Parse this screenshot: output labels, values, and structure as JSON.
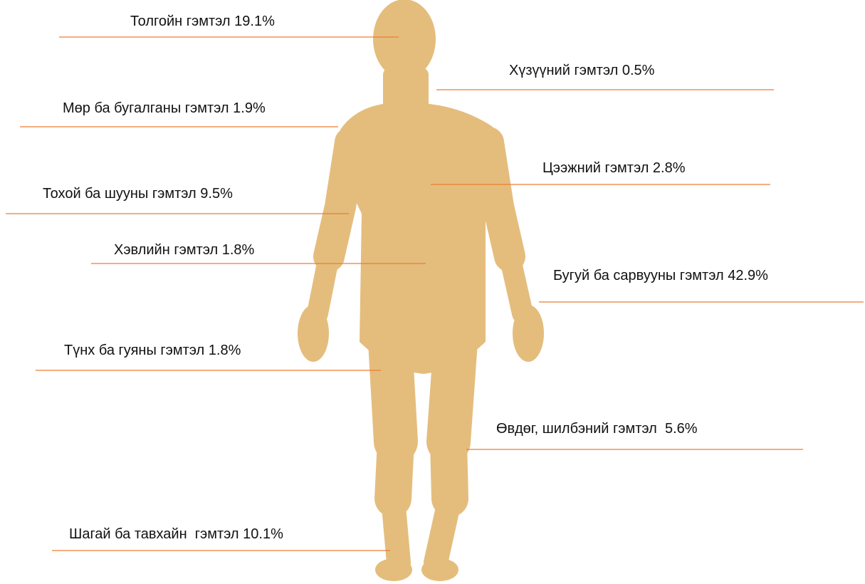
{
  "nodes": [
    {
      "label": "Толгойн гэмтэл 19.1%"
    },
    {
      "label": "Хүзүүний гэмтэл 0.5%"
    },
    {
      "label": "Мөр ба бугалганы гэмтэл 1.9%"
    },
    {
      "label": "Цээжний гэмтэл 2.8%"
    },
    {
      "label": "Тохой ба шууны гэмтэл 9.5%"
    },
    {
      "label": "Хэвлийн гэмтэл 1.8%"
    },
    {
      "label": "Бугуй ба сарвууны гэмтэл 42.9%"
    },
    {
      "label": "Түнх ба гуяны гэмтэл 1.8%"
    },
    {
      "label": "Өвдөг, шилбэний гэмтэл  5.6%"
    },
    {
      "label": "Шагай ба тавхайн  гэмтэл 10.1%"
    }
  ]
}
